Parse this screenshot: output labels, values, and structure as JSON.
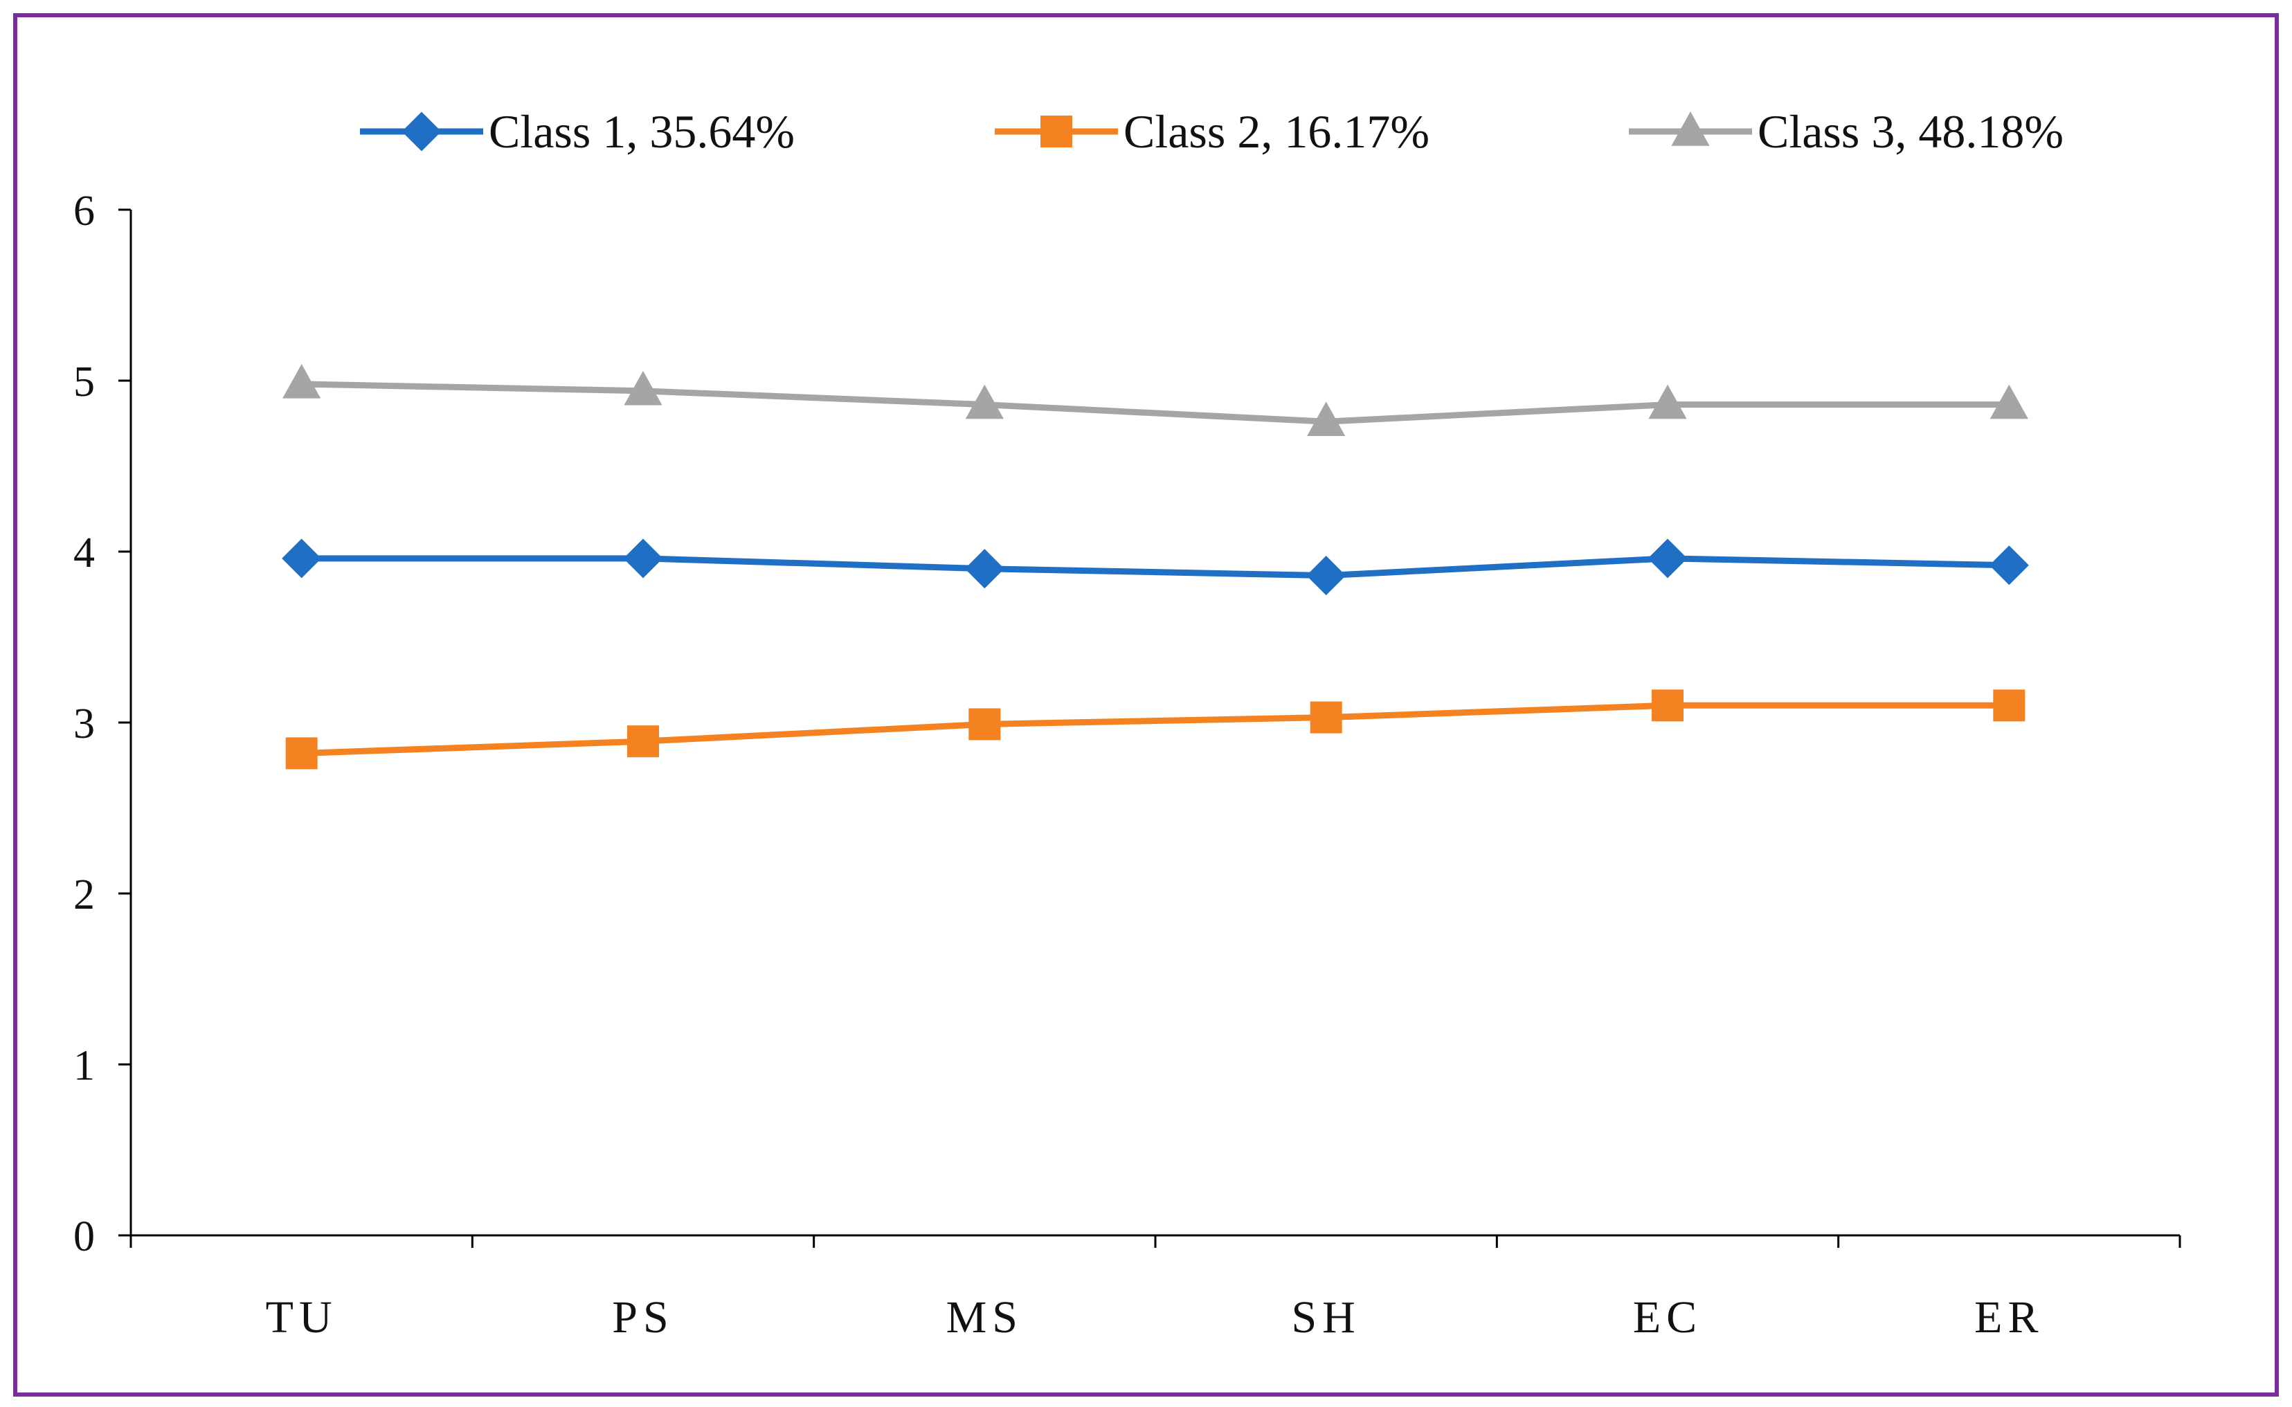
{
  "chart_data": {
    "type": "line",
    "title": "",
    "xlabel": "",
    "ylabel": "",
    "ylim": [
      0,
      6
    ],
    "yticks": [
      0,
      1,
      2,
      3,
      4,
      5,
      6
    ],
    "grid": false,
    "legend_position": "top",
    "categories": [
      "TU",
      "PS",
      "MS",
      "SH",
      "EC",
      "ER"
    ],
    "series": [
      {
        "name": "Class 1, 35.64%",
        "color": "#1f6fc5",
        "marker": "diamond",
        "values": [
          3.96,
          3.96,
          3.9,
          3.86,
          3.96,
          3.92
        ]
      },
      {
        "name": "Class 2, 16.17%",
        "color": "#f58220",
        "marker": "square",
        "values": [
          2.82,
          2.89,
          2.99,
          3.03,
          3.1,
          3.1
        ]
      },
      {
        "name": "Class 3, 48.18%",
        "color": "#a5a5a5",
        "marker": "triangle",
        "values": [
          4.98,
          4.94,
          4.86,
          4.76,
          4.86,
          4.86
        ]
      }
    ]
  }
}
